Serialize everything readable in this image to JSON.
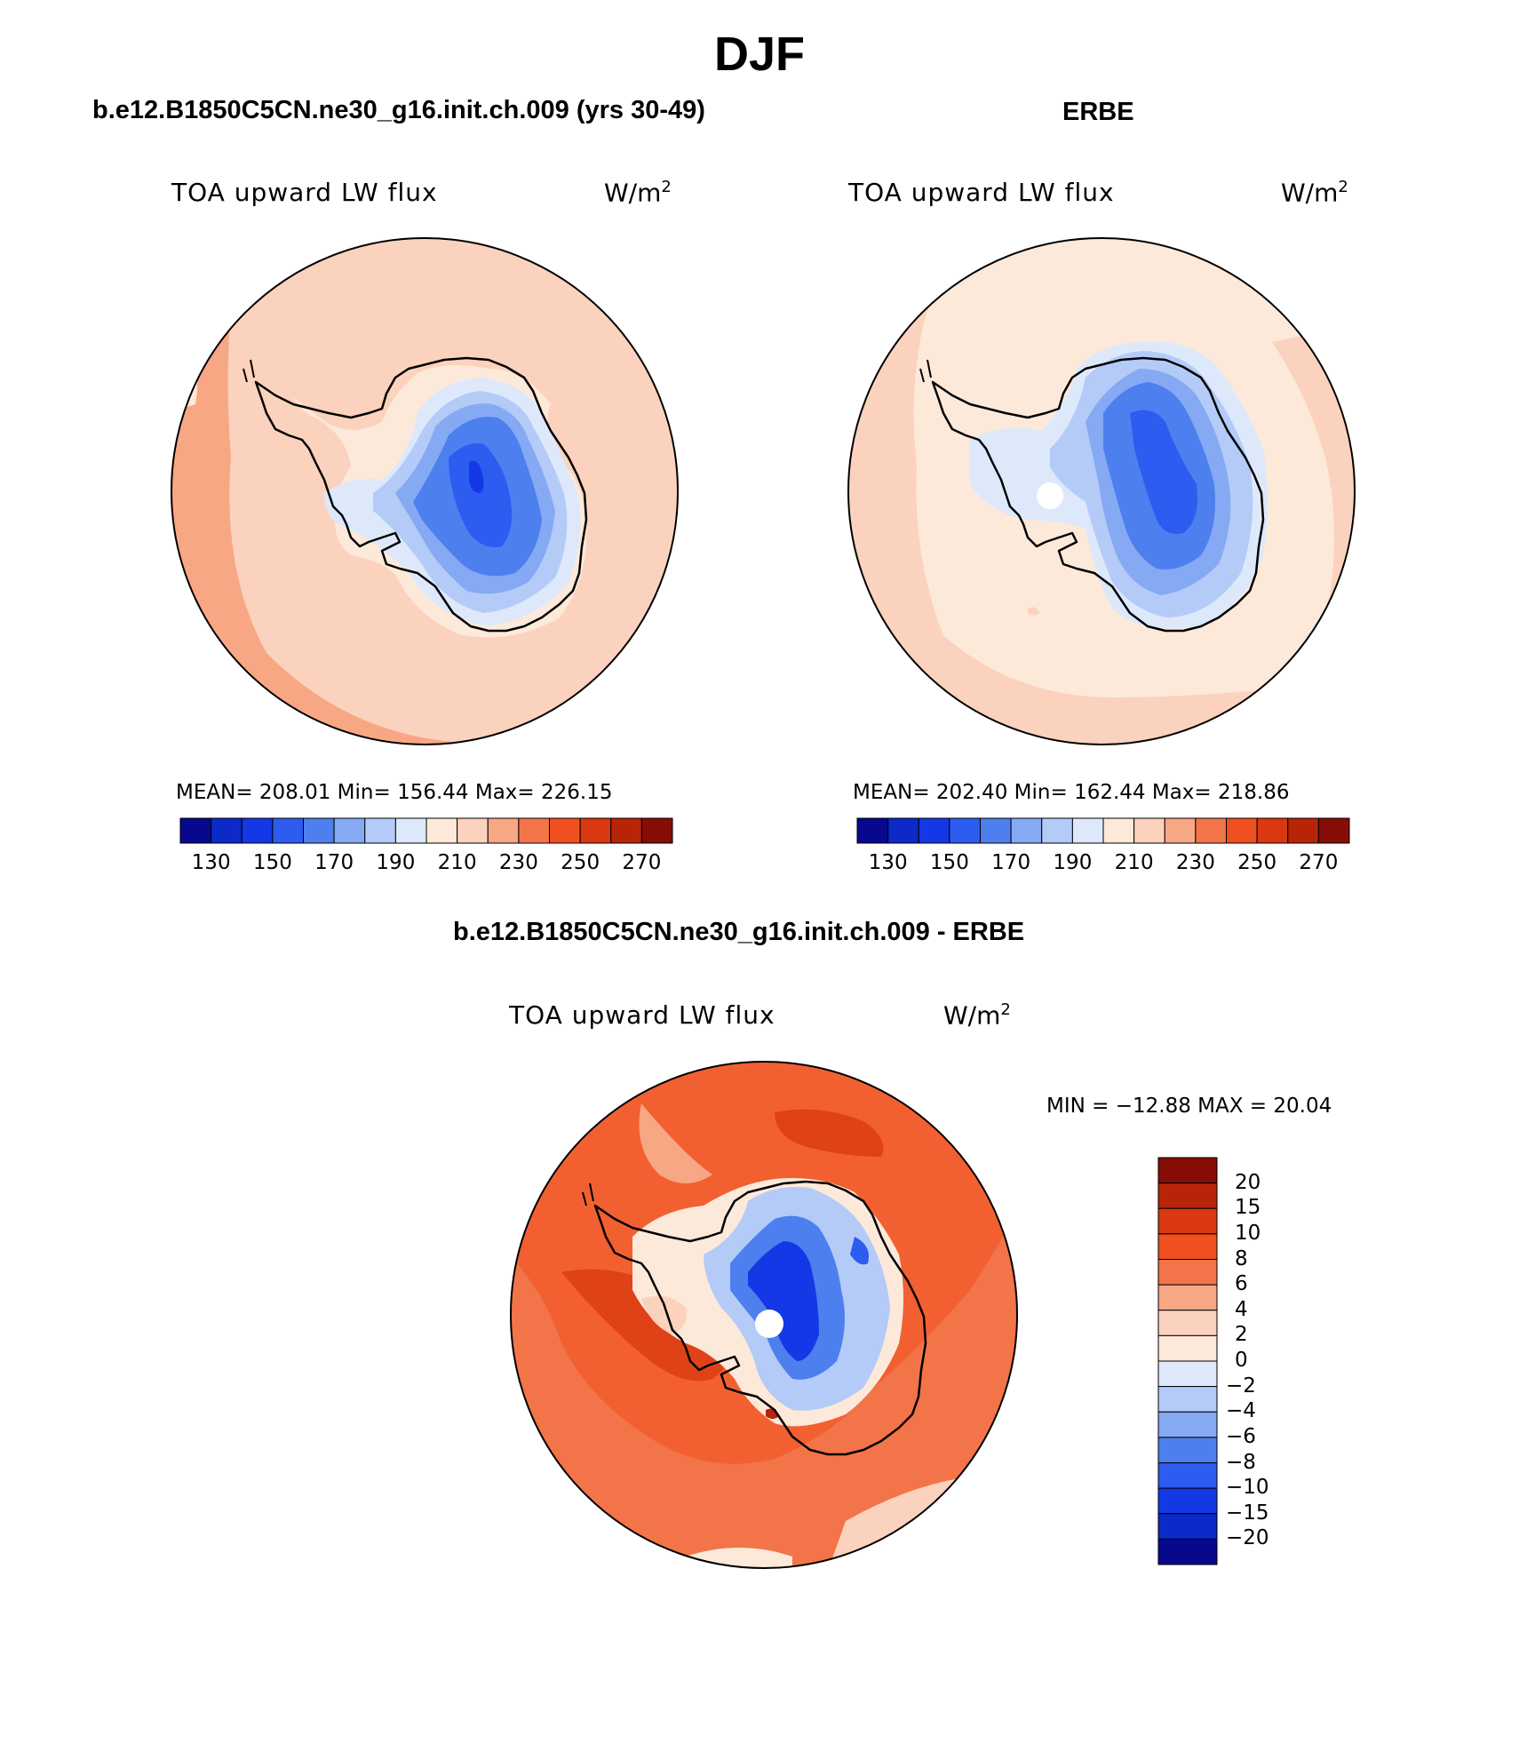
{
  "figure": {
    "title": "DJF",
    "panels": [
      {
        "title": "b.e12.B1850C5CN.ne30_g16.init.ch.009 (yrs 30-49)",
        "left_label": "TOA upward LW flux",
        "units_base": "W/m",
        "units_sup": "2",
        "stats": "MEAN= 208.01   Min= 156.44   Max= 226.15",
        "colorbar_ticks": [
          "130",
          "150",
          "170",
          "190",
          "210",
          "230",
          "250",
          "270"
        ],
        "pole_marker": false
      },
      {
        "title": "ERBE",
        "left_label": "TOA upward LW flux",
        "units_base": "W/m",
        "units_sup": "2",
        "stats": "MEAN= 202.40   Min= 162.44   Max= 218.86",
        "colorbar_ticks": [
          "130",
          "150",
          "170",
          "190",
          "210",
          "230",
          "250",
          "270"
        ],
        "pole_marker": true
      },
      {
        "title": "b.e12.B1850C5CN.ne30_g16.init.ch.009 - ERBE",
        "left_label": "TOA upward LW flux",
        "units_base": "W/m",
        "units_sup": "2",
        "stats": "MIN = −12.88 MAX =  20.04",
        "colorbar_ticks": [
          "20",
          "15",
          "10",
          "8",
          "6",
          "4",
          "2",
          "0",
          "−2",
          "−4",
          "−6",
          "−8",
          "−10",
          "−15",
          "−20"
        ],
        "pole_marker": true
      }
    ]
  },
  "colors": {
    "abs_scale": [
      "#08088c",
      "#0b2ac8",
      "#1438e6",
      "#2c5cf0",
      "#4d7fee",
      "#86a9f4",
      "#b4cbf8",
      "#dde9fb",
      "#fde9da",
      "#fbd2bd",
      "#f8a784",
      "#f37448",
      "#f0501f",
      "#d93810",
      "#b82408",
      "#880c06"
    ],
    "diff_scale": [
      "#880c06",
      "#b82408",
      "#d93810",
      "#f0501f",
      "#f37448",
      "#f8a784",
      "#fbd2bd",
      "#fde9da",
      "#dde9fb",
      "#b4cbf8",
      "#86a9f4",
      "#4d7fee",
      "#2c5cf0",
      "#1438e6",
      "#0b2ac8",
      "#08088c"
    ]
  }
}
